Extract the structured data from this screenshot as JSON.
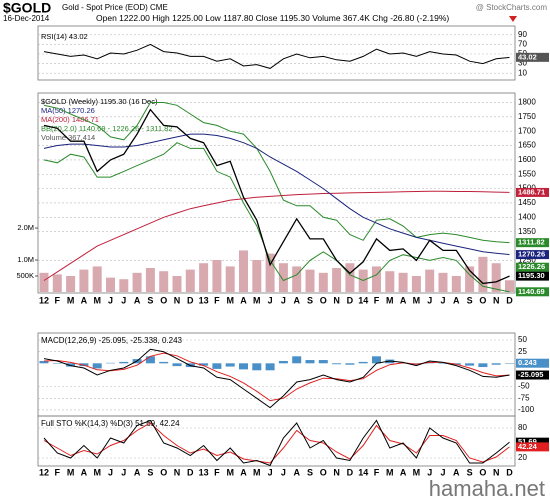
{
  "header": {
    "symbol": "$GOLD",
    "name": "Gold - Spot Price (EOD) CME",
    "source": "@ StockCharts.com",
    "date": "16-Dec-2014",
    "stats": [
      "Open 1222.00",
      "High 1225.00",
      "Low 1187.80",
      "Close 1195.30",
      "Volume 367.4K",
      "Chg -26.80 (-2.19%)"
    ]
  },
  "x_labels": [
    "12",
    "F",
    "M",
    "A",
    "M",
    "J",
    "J",
    "A",
    "S",
    "O",
    "N",
    "D",
    "13",
    "F",
    "M",
    "A",
    "M",
    "J",
    "J",
    "A",
    "S",
    "O",
    "N",
    "D",
    "14",
    "F",
    "M",
    "A",
    "M",
    "J",
    "J",
    "A",
    "S",
    "O",
    "N",
    "D"
  ],
  "watermark": "hamaha.net",
  "chart_data": [
    {
      "type": "line",
      "ylim": [
        0,
        100
      ],
      "yticks": [
        90,
        70,
        50,
        30,
        10
      ],
      "grid": true,
      "series": [
        {
          "name": "RSI(14) 43.02",
          "type": "line",
          "color": "#000000",
          "values": [
            55,
            50,
            45,
            48,
            40,
            52,
            50,
            58,
            70,
            55,
            52,
            45,
            45,
            35,
            40,
            25,
            28,
            20,
            40,
            50,
            42,
            45,
            38,
            35,
            45,
            60,
            50,
            52,
            45,
            55,
            50,
            48,
            35,
            30,
            40,
            43.02
          ]
        }
      ],
      "tags": [
        {
          "value": 43.02,
          "label": "43.02",
          "color": "#555555"
        }
      ]
    },
    {
      "type": "price",
      "ylim": [
        1140,
        1826
      ],
      "yticks": [
        1800,
        1750,
        1700,
        1650,
        1600,
        1550,
        1500,
        1450,
        1400,
        1350,
        1250
      ],
      "grid": true,
      "y2lim": [
        0,
        6160000
      ],
      "y2ticks": [
        {
          "value": 500000,
          "label": "500K"
        },
        {
          "value": 1000000,
          "label": "1.0M"
        },
        {
          "value": 2000000,
          "label": "2.0M"
        }
      ],
      "series": [
        {
          "name": "Volume 367,414",
          "type": "bar",
          "axis": "y2",
          "color": "#d8aab0",
          "values": [
            600000,
            550000,
            500000,
            700000,
            800000,
            450000,
            400000,
            600000,
            750000,
            650000,
            500000,
            700000,
            900000,
            1000000,
            800000,
            1300000,
            1000000,
            1200000,
            900000,
            800000,
            700000,
            600000,
            750000,
            900000,
            700000,
            800000,
            650000,
            600000,
            500000,
            700000,
            600000,
            500000,
            800000,
            1100000,
            900000,
            367414
          ]
        },
        {
          "name": "BB(20,2.0) 1140.69 - 1226.26 - 1311.82",
          "type": "line",
          "color": "#2a8a2a",
          "values": [
            1790,
            1780,
            1760,
            1740,
            1720,
            1680,
            1670,
            1720,
            1800,
            1800,
            1790,
            1760,
            1730,
            1720,
            1700,
            1690,
            1640,
            1560,
            1460,
            1440,
            1440,
            1400,
            1390,
            1340,
            1320,
            1390,
            1395,
            1370,
            1330,
            1340,
            1345,
            1340,
            1330,
            1320,
            1315,
            1311.82
          ]
        },
        {
          "type": "line",
          "color": "#2a8a2a",
          "values": [
            1600,
            1590,
            1620,
            1610,
            1540,
            1540,
            1560,
            1580,
            1600,
            1620,
            1660,
            1640,
            1640,
            1560,
            1540,
            1450,
            1370,
            1250,
            1180,
            1200,
            1250,
            1280,
            1250,
            1200,
            1180,
            1200,
            1250,
            1270,
            1260,
            1250,
            1260,
            1250,
            1200,
            1160,
            1150,
            1140.69
          ]
        },
        {
          "name": "MA(200) 1486.71",
          "type": "line",
          "color": "#c0203a",
          "values": [
            1180,
            1210,
            1240,
            1270,
            1300,
            1320,
            1340,
            1360,
            1380,
            1400,
            1415,
            1430,
            1440,
            1450,
            1460,
            1465,
            1470,
            1473,
            1476,
            1479,
            1481,
            1483,
            1484,
            1485,
            1486,
            1487,
            1488,
            1489,
            1490,
            1491,
            1491,
            1490,
            1490,
            1489,
            1488,
            1486.71
          ]
        },
        {
          "name": "MA(50) 1270.26",
          "type": "line",
          "color": "#1a237e",
          "values": [
            1640,
            1650,
            1655,
            1655,
            1650,
            1645,
            1645,
            1650,
            1660,
            1670,
            1680,
            1690,
            1690,
            1685,
            1675,
            1660,
            1640,
            1610,
            1585,
            1560,
            1530,
            1500,
            1465,
            1430,
            1400,
            1380,
            1360,
            1345,
            1330,
            1320,
            1310,
            1300,
            1290,
            1280,
            1275,
            1270.26
          ]
        },
        {
          "name": "$GOLD (Weekly) 1195.30 (16 Dec)",
          "type": "line",
          "color": "#000000",
          "values": [
            1720,
            1710,
            1665,
            1665,
            1560,
            1600,
            1620,
            1690,
            1775,
            1720,
            1715,
            1675,
            1660,
            1580,
            1595,
            1470,
            1390,
            1235,
            1315,
            1395,
            1325,
            1325,
            1250,
            1205,
            1245,
            1325,
            1285,
            1290,
            1250,
            1320,
            1285,
            1285,
            1215,
            1170,
            1175,
            1195.3
          ]
        }
      ],
      "tags": [
        {
          "value": 1486.71,
          "label": "1486.71",
          "color": "#c0203a"
        },
        {
          "value": 1311.82,
          "label": "1311.82",
          "color": "#2a8a2a"
        },
        {
          "value": 1270.26,
          "label": "1270.26",
          "color": "#1a237e"
        },
        {
          "value": 1226.26,
          "label": "1226.26",
          "color": "#2a8a2a"
        },
        {
          "value": 1195.3,
          "label": "1195.30",
          "color": "#000000"
        },
        {
          "value": 1140.69,
          "label": "1140.69",
          "color": "#2a8a2a"
        }
      ]
    },
    {
      "type": "macd",
      "title": "MACD(12,26,9) -25.095, -25.338, 0.243",
      "ylim": [
        -113,
        65
      ],
      "yticks": [
        50,
        25,
        -50,
        -75,
        -100
      ],
      "grid": true,
      "series": [
        {
          "type": "bar",
          "color": "#4a90c8",
          "values": [
            5,
            -1,
            -7,
            -6,
            -11,
            1,
            3,
            9,
            15,
            3,
            -6,
            -8,
            -5,
            -12,
            -7,
            -13,
            -15,
            -15,
            5,
            15,
            7,
            7,
            -2,
            -3,
            3,
            15,
            8,
            1,
            -3,
            3,
            0,
            -3,
            -5,
            -8,
            -3,
            0.243
          ]
        },
        {
          "type": "line",
          "color": "#e02020",
          "values": [
            5,
            6,
            2,
            -4,
            -14,
            -16,
            -13,
            -4,
            15,
            22,
            16,
            3,
            -5,
            -18,
            -28,
            -42,
            -60,
            -80,
            -75,
            -55,
            -42,
            -32,
            -33,
            -37,
            -33,
            -15,
            -3,
            1,
            -2,
            2,
            2,
            -2,
            -10,
            -20,
            -27,
            -25.338
          ]
        },
        {
          "type": "line",
          "color": "#000000",
          "values": [
            10,
            5,
            -5,
            -10,
            -25,
            -15,
            -10,
            5,
            30,
            25,
            10,
            -5,
            -10,
            -30,
            -35,
            -55,
            -75,
            -95,
            -70,
            -40,
            -35,
            -25,
            -35,
            -40,
            -30,
            0,
            5,
            2,
            -5,
            5,
            2,
            -5,
            -15,
            -28,
            -30,
            -25.095
          ]
        }
      ],
      "tags": [
        {
          "value": 0.243,
          "label": "0.243",
          "color": "#4a90c8"
        },
        {
          "value": -25.095,
          "label": "-25.095",
          "color": "#000000"
        }
      ]
    },
    {
      "type": "stochastic",
      "title": "Full STO %K(14,3) %D(3) 51.69, 42.24",
      "ylim": [
        4,
        104
      ],
      "yticks": [
        80,
        20
      ],
      "grid": true,
      "series": [
        {
          "type": "line",
          "color": "#e02020",
          "values": [
            55,
            40,
            25,
            35,
            28,
            45,
            55,
            75,
            90,
            65,
            45,
            30,
            38,
            25,
            32,
            18,
            14,
            10,
            40,
            75,
            55,
            50,
            32,
            18,
            45,
            85,
            55,
            48,
            30,
            65,
            65,
            55,
            20,
            12,
            22,
            42.24
          ]
        },
        {
          "type": "line",
          "color": "#000000",
          "values": [
            60,
            30,
            20,
            45,
            20,
            60,
            50,
            85,
            95,
            50,
            40,
            25,
            45,
            15,
            40,
            10,
            15,
            5,
            60,
            90,
            40,
            55,
            20,
            15,
            60,
            95,
            40,
            50,
            20,
            80,
            60,
            50,
            10,
            10,
            30,
            51.69
          ]
        }
      ],
      "tags": [
        {
          "value": 51.69,
          "label": "51.69",
          "color": "#000000"
        },
        {
          "value": 42.24,
          "label": "42.24",
          "color": "#e02020"
        }
      ]
    }
  ]
}
